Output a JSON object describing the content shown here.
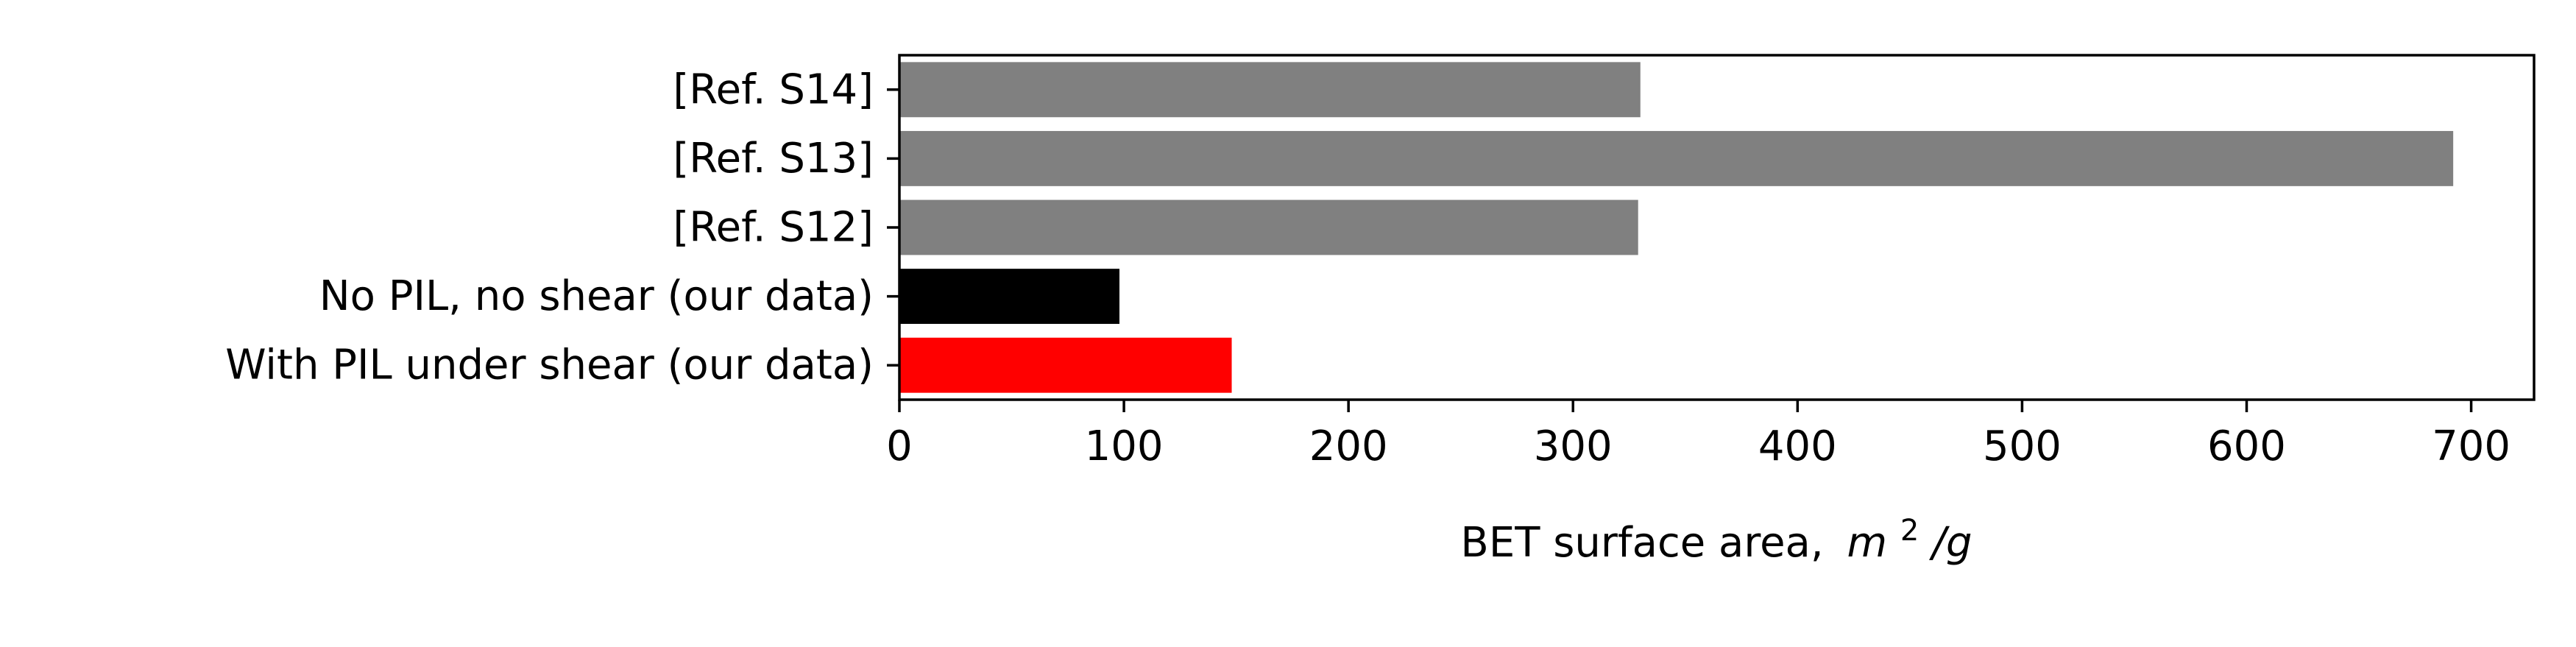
{
  "chart_data": {
    "type": "bar",
    "orientation": "horizontal",
    "title": "",
    "categories": [
      "[Ref. S14]",
      "[Ref. S13]",
      "[Ref. S12]",
      "No PIL, no shear (our data)",
      "With PIL under shear (our data)"
    ],
    "values": [
      330,
      692,
      329,
      98,
      148
    ],
    "bar_colors": [
      "#808080",
      "#808080",
      "#808080",
      "#000000",
      "#ff0000"
    ],
    "xlabel": "BET surface area,",
    "xlabel_math_base": "m",
    "xlabel_math_sup": "2",
    "xlabel_math_tail": "/g",
    "ylabel": "",
    "xlim": [
      0,
      728
    ],
    "xticks": [
      0,
      100,
      200,
      300,
      400,
      500,
      600,
      700
    ],
    "grid": false,
    "legend": "none"
  }
}
